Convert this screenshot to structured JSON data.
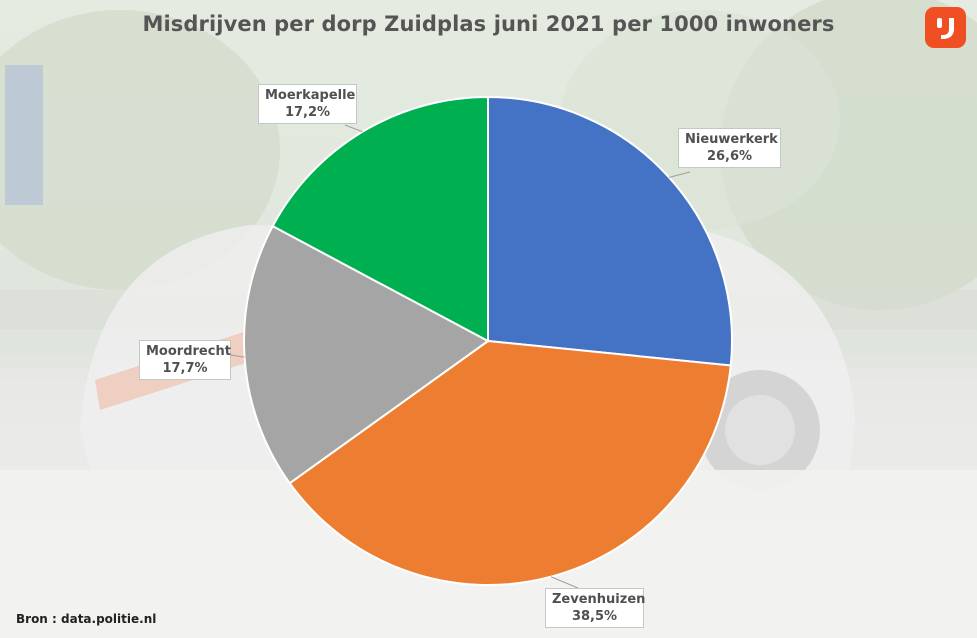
{
  "chart_data": {
    "type": "pie",
    "title": "Misdrijven per dorp Zuidplas juni 2021 per 1000 inwoners",
    "slices": [
      {
        "name": "Nieuwerkerk",
        "value": 26.6,
        "label": "26,6%",
        "color": "#4472c4"
      },
      {
        "name": "Zevenhuizen",
        "value": 38.5,
        "label": "38,5%",
        "color": "#ed7d31"
      },
      {
        "name": "Moordrecht",
        "value": 17.7,
        "label": "17,7%",
        "color": "#a5a5a5"
      },
      {
        "name": "Moerkapelle",
        "value": 17.2,
        "label": "17,2%",
        "color": "#00b050"
      }
    ]
  },
  "source_text": "Bron : data.politie.nl",
  "logo": {
    "icon": "ij-logo-icon",
    "color": "#f04e23"
  },
  "background": {
    "description_icon": "police-car-photo-background"
  }
}
